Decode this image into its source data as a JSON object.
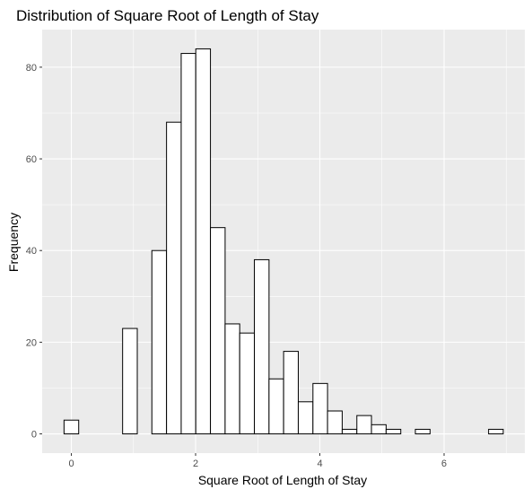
{
  "chart_data": {
    "type": "bar",
    "subtype": "histogram",
    "title": "Distribution of Square Root of Length of Stay",
    "xlabel": "Square Root of Length of Stay",
    "ylabel": "Frequency",
    "bin_width": 0.2356,
    "bins": [
      {
        "x_start": -0.118,
        "x_end": 0.118,
        "count": 3
      },
      {
        "x_start": 0.118,
        "x_end": 0.354,
        "count": 0
      },
      {
        "x_start": 0.354,
        "x_end": 0.589,
        "count": 0
      },
      {
        "x_start": 0.589,
        "x_end": 0.825,
        "count": 0
      },
      {
        "x_start": 0.825,
        "x_end": 1.061,
        "count": 23
      },
      {
        "x_start": 1.061,
        "x_end": 1.296,
        "count": 0
      },
      {
        "x_start": 1.296,
        "x_end": 1.532,
        "count": 40
      },
      {
        "x_start": 1.532,
        "x_end": 1.768,
        "count": 68
      },
      {
        "x_start": 1.768,
        "x_end": 2.003,
        "count": 83
      },
      {
        "x_start": 2.003,
        "x_end": 2.239,
        "count": 84
      },
      {
        "x_start": 2.239,
        "x_end": 2.475,
        "count": 45
      },
      {
        "x_start": 2.475,
        "x_end": 2.71,
        "count": 24
      },
      {
        "x_start": 2.71,
        "x_end": 2.946,
        "count": 22
      },
      {
        "x_start": 2.946,
        "x_end": 3.182,
        "count": 38
      },
      {
        "x_start": 3.182,
        "x_end": 3.417,
        "count": 12
      },
      {
        "x_start": 3.417,
        "x_end": 3.653,
        "count": 18
      },
      {
        "x_start": 3.653,
        "x_end": 3.889,
        "count": 7
      },
      {
        "x_start": 3.889,
        "x_end": 4.124,
        "count": 11
      },
      {
        "x_start": 4.124,
        "x_end": 4.36,
        "count": 5
      },
      {
        "x_start": 4.36,
        "x_end": 4.596,
        "count": 1
      },
      {
        "x_start": 4.596,
        "x_end": 4.831,
        "count": 4
      },
      {
        "x_start": 4.831,
        "x_end": 5.067,
        "count": 2
      },
      {
        "x_start": 5.067,
        "x_end": 5.303,
        "count": 1
      },
      {
        "x_start": 5.303,
        "x_end": 5.538,
        "count": 0
      },
      {
        "x_start": 5.538,
        "x_end": 5.774,
        "count": 1
      },
      {
        "x_start": 5.774,
        "x_end": 6.01,
        "count": 0
      },
      {
        "x_start": 6.01,
        "x_end": 6.245,
        "count": 0
      },
      {
        "x_start": 6.245,
        "x_end": 6.481,
        "count": 0
      },
      {
        "x_start": 6.481,
        "x_end": 6.717,
        "count": 0
      },
      {
        "x_start": 6.717,
        "x_end": 6.952,
        "count": 1
      }
    ],
    "xlim": [
      -0.47,
      7.3
    ],
    "ylim": [
      -4.2,
      88.2
    ],
    "x_ticks": [
      0,
      2,
      4,
      6
    ],
    "y_ticks": [
      0,
      20,
      40,
      60,
      80
    ],
    "grid": true,
    "legend": "none",
    "colors": {
      "panel_background": "#ebebeb",
      "grid_major": "#ffffff",
      "bar_fill": "#ffffff",
      "bar_outline": "#000000",
      "tick_label": "#4d4d4d",
      "tick_mark": "#333333"
    }
  }
}
